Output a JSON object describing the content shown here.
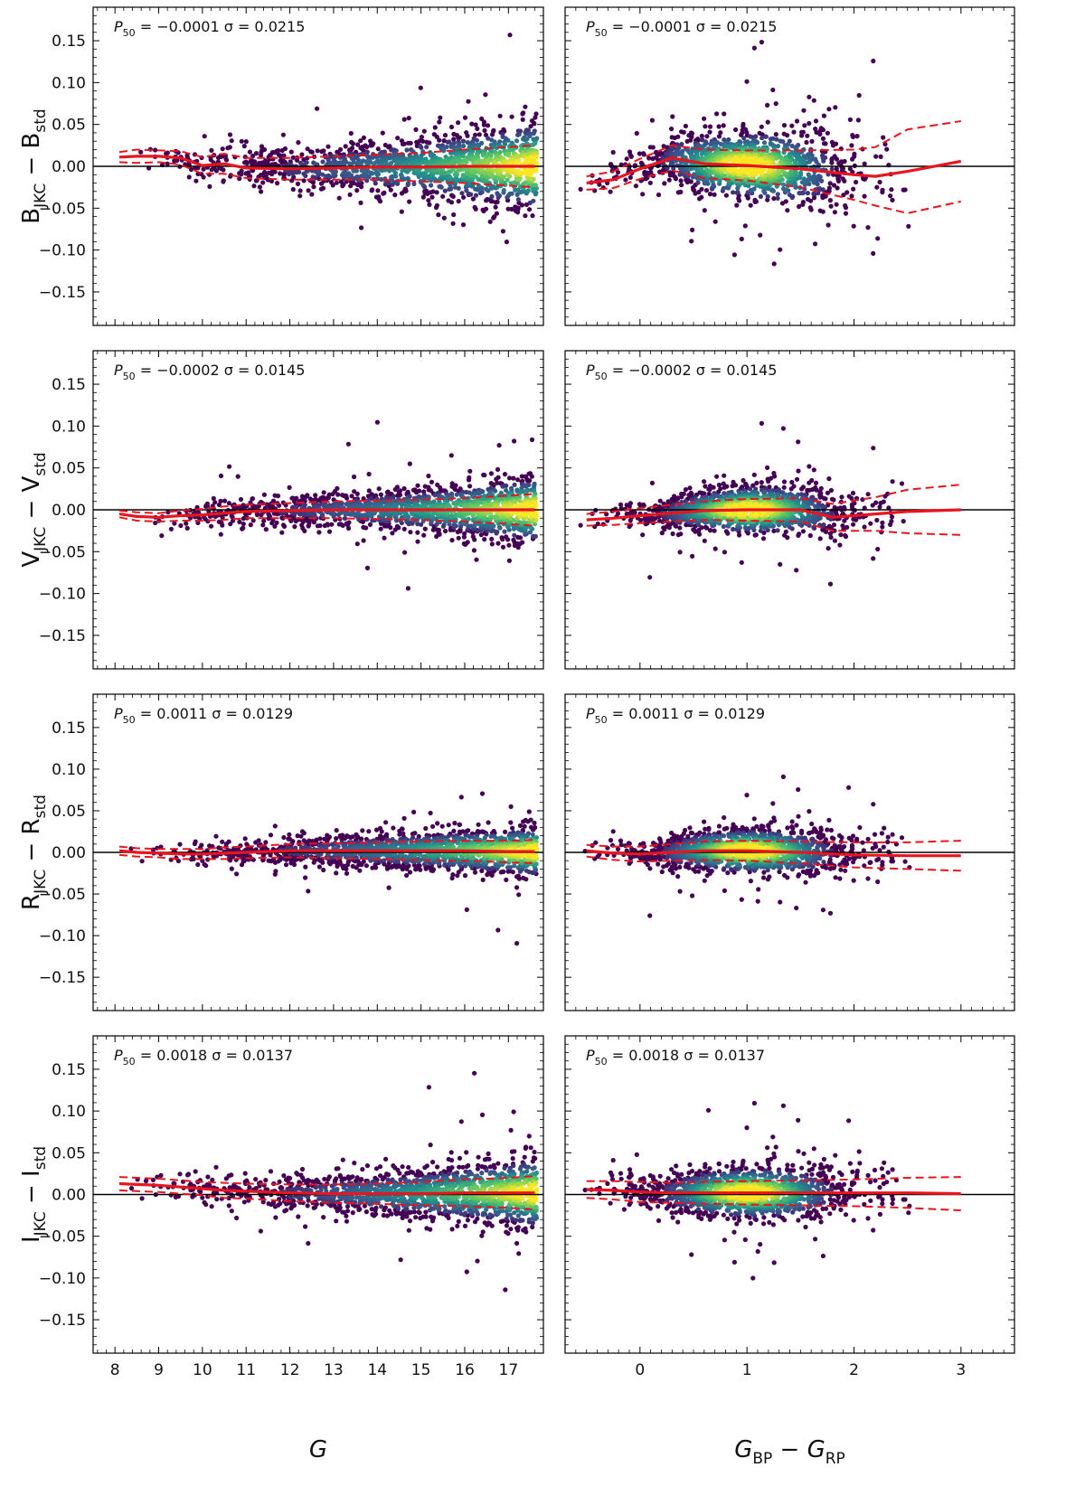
{
  "colors": {
    "scatter_sparse": "#440154",
    "scatter_mid": "#21918c",
    "scatter_dense": "#fde725",
    "median_line": "#e8141e",
    "zero_line": "#000000"
  },
  "x_axes": {
    "left": {
      "label": "G",
      "xlim": [
        7.5,
        17.8
      ],
      "ticks": [
        8,
        9,
        10,
        11,
        12,
        13,
        14,
        15,
        16,
        17
      ],
      "tick_labels": [
        "8",
        "9",
        "10",
        "11",
        "12",
        "13",
        "14",
        "15",
        "16",
        "17"
      ]
    },
    "right": {
      "label_main": "G",
      "label_sub1": "BP",
      "label_mid": " − G",
      "label_sub2": "RP",
      "xlim": [
        -0.7,
        3.5
      ],
      "ticks": [
        0,
        1,
        2,
        3
      ],
      "tick_labels": [
        "0",
        "1",
        "2",
        "3"
      ]
    }
  },
  "y_axis": {
    "ylim": [
      -0.19,
      0.19
    ],
    "ticks": [
      -0.15,
      -0.1,
      -0.05,
      0.0,
      0.05,
      0.1,
      0.15
    ],
    "tick_labels": [
      "−0.15",
      "−0.10",
      "−0.05",
      "0.00",
      "0.05",
      "0.10",
      "0.15"
    ]
  },
  "chart_data": [
    {
      "type": "scatter",
      "band": "B",
      "panel": "left",
      "ylabel_main": "B",
      "ylabel_sub1": "JKC",
      "ylabel_mid": " − B",
      "ylabel_sub2": "std",
      "annotation": "P50 = −0.0001  σ = 0.0215",
      "ann_p": "P",
      "ann_p_sub": "50",
      "ann_rest": " = −0.0001  σ = 0.0215",
      "p50": -0.0001,
      "sigma": 0.0215,
      "median_x": [
        8.1,
        8.5,
        9.0,
        9.5,
        10.0,
        10.5,
        11.0,
        12.0,
        13.0,
        14.0,
        15.0,
        16.0,
        17.0,
        17.6
      ],
      "median_y": [
        0.011,
        0.012,
        0.012,
        0.01,
        0.001,
        0.003,
        -0.002,
        -0.003,
        -0.002,
        -0.001,
        -0.001,
        0.0,
        0.0,
        0.0
      ],
      "band_halfwidth": [
        0.006,
        0.008,
        0.007,
        0.008,
        0.01,
        0.012,
        0.012,
        0.013,
        0.014,
        0.015,
        0.017,
        0.02,
        0.023,
        0.025
      ]
    },
    {
      "type": "scatter",
      "band": "B",
      "panel": "right",
      "ylabel_main": "B",
      "ylabel_sub1": "JKC",
      "ylabel_mid": " − B",
      "ylabel_sub2": "std",
      "annotation": "P50 = −0.0001  σ = 0.0215",
      "ann_p": "P",
      "ann_p_sub": "50",
      "ann_rest": " = −0.0001  σ = 0.0215",
      "p50": -0.0001,
      "sigma": 0.0215,
      "median_x": [
        -0.5,
        -0.25,
        0.0,
        0.3,
        0.6,
        1.0,
        1.5,
        2.0,
        2.2,
        2.5,
        3.0
      ],
      "median_y": [
        -0.02,
        -0.016,
        -0.003,
        0.01,
        0.003,
        0.001,
        -0.003,
        -0.01,
        -0.012,
        -0.006,
        0.006
      ],
      "band_halfwidth": [
        0.008,
        0.01,
        0.012,
        0.015,
        0.017,
        0.018,
        0.022,
        0.03,
        0.035,
        0.05,
        0.048
      ]
    },
    {
      "type": "scatter",
      "band": "V",
      "panel": "left",
      "ylabel_main": "V",
      "ylabel_sub1": "JKC",
      "ylabel_mid": " − V",
      "ylabel_sub2": "std",
      "annotation": "P50 = −0.0002  σ = 0.0145",
      "ann_p": "P",
      "ann_p_sub": "50",
      "ann_rest": " = −0.0002  σ = 0.0145",
      "p50": -0.0002,
      "sigma": 0.0145,
      "median_x": [
        8.1,
        8.5,
        9.0,
        9.5,
        10.0,
        10.5,
        11.0,
        12.0,
        13.0,
        14.0,
        15.0,
        16.0,
        17.0,
        17.6
      ],
      "median_y": [
        -0.005,
        -0.008,
        -0.009,
        -0.007,
        -0.006,
        -0.004,
        -0.002,
        -0.001,
        0.0,
        0.0,
        0.0,
        0.0,
        0.0,
        0.0
      ],
      "band_halfwidth": [
        0.004,
        0.005,
        0.005,
        0.006,
        0.007,
        0.008,
        0.008,
        0.009,
        0.01,
        0.011,
        0.012,
        0.014,
        0.017,
        0.019
      ]
    },
    {
      "type": "scatter",
      "band": "V",
      "panel": "right",
      "ylabel_main": "V",
      "ylabel_sub1": "JKC",
      "ylabel_mid": " − V",
      "ylabel_sub2": "std",
      "annotation": "P50 = −0.0002  σ = 0.0145",
      "ann_p": "P",
      "ann_p_sub": "50",
      "ann_rest": " = −0.0002  σ = 0.0145",
      "p50": -0.0002,
      "sigma": 0.0145,
      "median_x": [
        -0.5,
        -0.25,
        0.0,
        0.3,
        0.6,
        1.0,
        1.5,
        1.8,
        2.2,
        2.5,
        3.0
      ],
      "median_y": [
        -0.012,
        -0.01,
        -0.007,
        -0.004,
        -0.001,
        0.0,
        0.0,
        -0.009,
        -0.005,
        -0.002,
        0.0
      ],
      "band_halfwidth": [
        0.007,
        0.008,
        0.009,
        0.01,
        0.011,
        0.013,
        0.014,
        0.016,
        0.02,
        0.026,
        0.03
      ]
    },
    {
      "type": "scatter",
      "band": "R",
      "panel": "left",
      "ylabel_main": "R",
      "ylabel_sub1": "JKC",
      "ylabel_mid": " − R",
      "ylabel_sub2": "std",
      "annotation": "P50 = 0.0011  σ = 0.0129",
      "ann_p": "P",
      "ann_p_sub": "50",
      "ann_rest": " = 0.0011  σ = 0.0129",
      "p50": 0.0011,
      "sigma": 0.0129,
      "median_x": [
        8.1,
        8.5,
        9.0,
        9.5,
        10.0,
        10.5,
        11.0,
        12.0,
        13.0,
        14.0,
        15.0,
        16.0,
        17.0,
        17.6
      ],
      "median_y": [
        0.002,
        0.0,
        -0.001,
        -0.002,
        -0.002,
        -0.001,
        0.0,
        0.002,
        0.002,
        0.002,
        0.002,
        0.002,
        0.001,
        0.001
      ],
      "band_halfwidth": [
        0.005,
        0.005,
        0.005,
        0.006,
        0.006,
        0.007,
        0.007,
        0.008,
        0.009,
        0.01,
        0.011,
        0.012,
        0.013,
        0.014
      ]
    },
    {
      "type": "scatter",
      "band": "R",
      "panel": "right",
      "ylabel_main": "R",
      "ylabel_sub1": "JKC",
      "ylabel_mid": " − R",
      "ylabel_sub2": "std",
      "annotation": "P50 = 0.0011  σ = 0.0129",
      "ann_p": "P",
      "ann_p_sub": "50",
      "ann_rest": " = 0.0011  σ = 0.0129",
      "p50": 0.0011,
      "sigma": 0.0129,
      "median_x": [
        -0.5,
        -0.25,
        0.0,
        0.3,
        0.6,
        1.0,
        1.5,
        2.0,
        2.5,
        3.0
      ],
      "median_y": [
        0.002,
        -0.001,
        -0.002,
        0.0,
        0.002,
        0.002,
        0.0,
        -0.003,
        -0.004,
        -0.004
      ],
      "band_halfwidth": [
        0.007,
        0.008,
        0.009,
        0.01,
        0.011,
        0.012,
        0.013,
        0.015,
        0.016,
        0.018
      ]
    },
    {
      "type": "scatter",
      "band": "I",
      "panel": "left",
      "ylabel_main": "I",
      "ylabel_sub1": "JKC",
      "ylabel_mid": " − I",
      "ylabel_sub2": "std",
      "annotation": "P50 = 0.0018  σ = 0.0137",
      "ann_p": "P",
      "ann_p_sub": "50",
      "ann_rest": " = 0.0018  σ = 0.0137",
      "p50": 0.0018,
      "sigma": 0.0137,
      "median_x": [
        8.1,
        8.5,
        9.0,
        9.5,
        10.0,
        10.5,
        11.0,
        12.0,
        13.0,
        14.0,
        15.0,
        16.0,
        17.0,
        17.6
      ],
      "median_y": [
        0.013,
        0.012,
        0.011,
        0.009,
        0.007,
        0.005,
        0.004,
        0.002,
        0.001,
        0.001,
        0.001,
        0.002,
        0.002,
        0.002
      ],
      "band_halfwidth": [
        0.008,
        0.008,
        0.008,
        0.008,
        0.008,
        0.009,
        0.009,
        0.01,
        0.011,
        0.012,
        0.014,
        0.016,
        0.018,
        0.02
      ]
    },
    {
      "type": "scatter",
      "band": "I",
      "panel": "right",
      "ylabel_main": "I",
      "ylabel_sub1": "JKC",
      "ylabel_mid": " − I",
      "ylabel_sub2": "std",
      "annotation": "P50 = 0.0018  σ = 0.0137",
      "ann_p": "P",
      "ann_p_sub": "50",
      "ann_rest": " = 0.0018  σ = 0.0137",
      "p50": 0.0018,
      "sigma": 0.0137,
      "median_x": [
        -0.5,
        -0.25,
        0.0,
        0.3,
        0.6,
        1.0,
        1.5,
        2.0,
        2.5,
        3.0
      ],
      "median_y": [
        0.006,
        0.005,
        0.003,
        0.002,
        0.002,
        0.002,
        0.002,
        0.002,
        0.002,
        0.001
      ],
      "band_halfwidth": [
        0.01,
        0.011,
        0.012,
        0.012,
        0.013,
        0.014,
        0.015,
        0.016,
        0.018,
        0.02
      ]
    }
  ]
}
